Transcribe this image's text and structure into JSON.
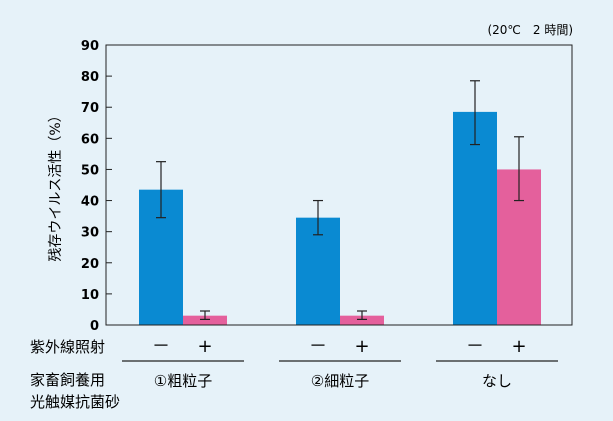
{
  "chart_data": {
    "type": "bar",
    "note": "(20℃　2 時間)",
    "ylabel": "残存ウイルス活性（%）",
    "ylim": [
      0,
      90
    ],
    "yticks": [
      0,
      10,
      20,
      30,
      40,
      50,
      60,
      70,
      80,
      90
    ],
    "categories": [
      "①粗粒子",
      "②細粒子",
      "なし"
    ],
    "series": [
      {
        "sign": "－",
        "color": "#0a8ad2",
        "values": [
          43.5,
          34.5,
          68.5
        ],
        "error_low": [
          34.5,
          29,
          58
        ],
        "error_high": [
          52.5,
          40,
          78.5
        ]
      },
      {
        "sign": "+",
        "color": "#e4609c",
        "values": [
          3,
          3,
          50
        ],
        "error_low": [
          1.8,
          1.8,
          40
        ],
        "error_high": [
          4.5,
          4.5,
          60.5
        ]
      }
    ],
    "rows": {
      "uv_label": "紫外線照射",
      "sand_label_line1": "家畜飼養用",
      "sand_label_line2": "光触媒抗菌砂"
    },
    "grid": false
  }
}
